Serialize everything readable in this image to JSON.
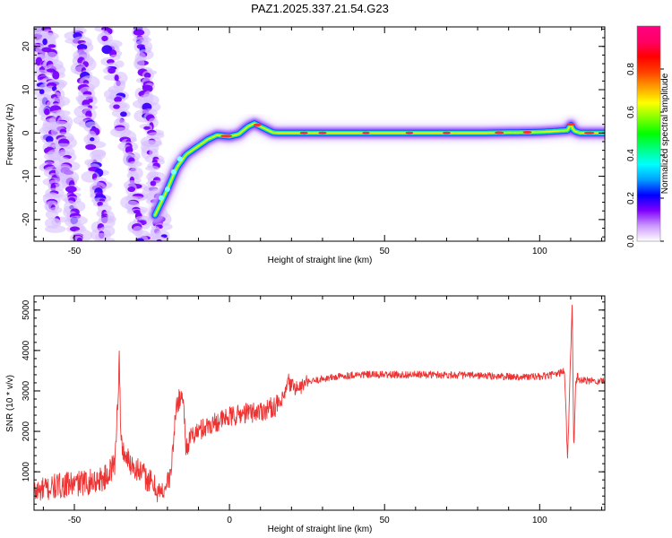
{
  "figure_title": "PAZ1.2025.337.21.54.G23",
  "chart_data": [
    {
      "type": "heatmap",
      "title": "",
      "xlabel": "Height of straight line (km)",
      "ylabel": "Frequency (Hz)",
      "xlim": [
        -63,
        121
      ],
      "ylim": [
        -25,
        24.5
      ],
      "x_ticks": [
        -50,
        0,
        50,
        100
      ],
      "y_ticks": [
        -20,
        -10,
        0,
        10,
        20
      ],
      "ridge": {
        "description": "main spectral ridge (frequency vs height)",
        "x": [
          -24,
          -20,
          -17,
          -14,
          -10,
          -7,
          -4,
          0,
          3,
          6,
          8,
          10,
          12,
          14,
          16,
          20,
          40,
          60,
          80,
          100,
          109,
          110,
          111,
          113,
          121
        ],
        "y": [
          -19,
          -13,
          -8,
          -5,
          -3,
          -1.5,
          -0.5,
          -0.8,
          -0.3,
          1.5,
          2.2,
          1.5,
          0.8,
          0.1,
          0,
          0,
          0,
          0,
          0,
          0.2,
          0.6,
          2.0,
          0.5,
          0,
          0
        ]
      },
      "aliases": {
        "description": "diagonal aliased bands, left region",
        "bands": [
          {
            "x": [
              -62,
              -60,
              -58,
              -56
            ],
            "y": [
              24,
              12,
              0,
              -22
            ]
          },
          {
            "x": [
              -59,
              -56,
              -52,
              -49
            ],
            "y": [
              24,
              8,
              -8,
              -25
            ]
          },
          {
            "x": [
              -49,
              -46,
              -43,
              -40
            ],
            "y": [
              24,
              8,
              -8,
              -25
            ]
          },
          {
            "x": [
              -40,
              -36,
              -32,
              -28
            ],
            "y": [
              24,
              8,
              -8,
              -25
            ]
          },
          {
            "x": [
              -29,
              -27,
              -25,
              -22
            ],
            "y": [
              24,
              10,
              -5,
              -25
            ]
          }
        ]
      },
      "colorbar": {
        "label": "Normalized spectral amplitude",
        "range": [
          0,
          1
        ],
        "ticks": [
          0.0,
          0.2,
          0.4,
          0.6,
          0.8
        ],
        "tick_labels": [
          "0.0",
          "0.2",
          "0.4",
          "0.6",
          "0.8"
        ],
        "colors": [
          "#ffffff",
          "#cc99ff",
          "#7f00ff",
          "#0000ff",
          "#00a0ff",
          "#00ffff",
          "#00ff80",
          "#00ff00",
          "#80ff00",
          "#ffff00",
          "#ffa000",
          "#ff4000",
          "#ff0000",
          "#ff0066",
          "#ff007f"
        ]
      }
    },
    {
      "type": "line",
      "title": "",
      "xlabel": "Height of straight line (km)",
      "ylabel": "SNR (10 * v/v)",
      "xlim": [
        -63,
        121
      ],
      "ylim": [
        50,
        5350
      ],
      "x_ticks": [
        -50,
        0,
        50,
        100
      ],
      "y_ticks": [
        1000,
        2000,
        3000,
        4000,
        5000
      ],
      "series": [
        {
          "name": "SNR",
          "color": "#ee3333",
          "x": [
            -63,
            -55,
            -45,
            -40,
            -37,
            -36,
            -35.5,
            -35,
            -33,
            -30,
            -25,
            -22,
            -19,
            -17,
            -15,
            -14,
            -12,
            -8,
            -4,
            0,
            5,
            10,
            14,
            17,
            19,
            22,
            25,
            30,
            35,
            40,
            50,
            60,
            70,
            80,
            90,
            100,
            105,
            108,
            109,
            110,
            110.5,
            111,
            111.5,
            112,
            114,
            121
          ],
          "y": [
            500,
            650,
            750,
            850,
            1200,
            2800,
            3800,
            1700,
            1300,
            1100,
            700,
            450,
            900,
            2700,
            2900,
            1600,
            1900,
            2100,
            2250,
            2350,
            2450,
            2500,
            2600,
            2700,
            3200,
            3050,
            3200,
            3300,
            3350,
            3400,
            3400,
            3400,
            3400,
            3380,
            3350,
            3350,
            3400,
            3500,
            1300,
            4000,
            5300,
            1400,
            3000,
            3300,
            3250,
            3250
          ]
        }
      ]
    }
  ]
}
